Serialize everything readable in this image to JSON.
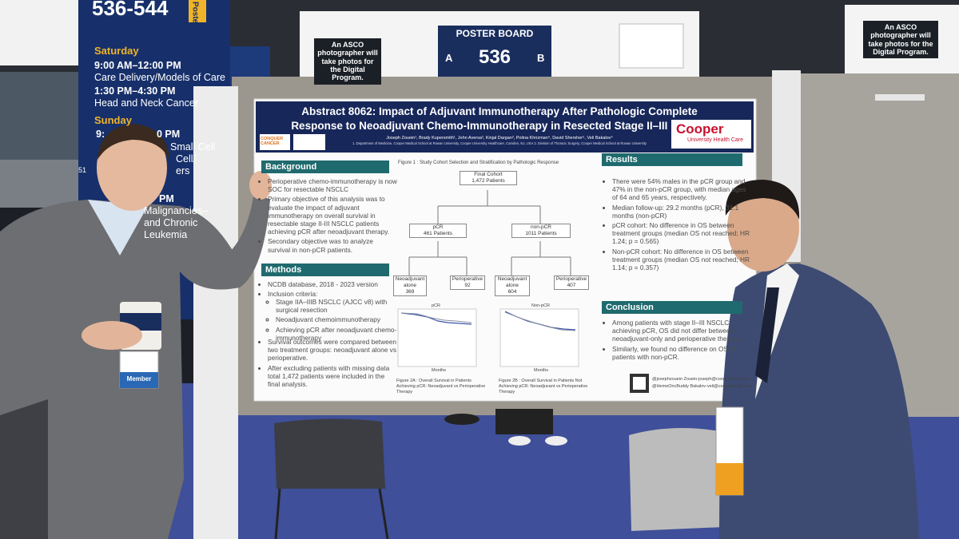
{
  "left_banner": {
    "board_range": "536-544",
    "side_label": "Poste",
    "saturday": "Saturday",
    "sat_time_1": "9:00 AM–12:00 PM",
    "sat_topic_1": "Care Delivery/Models of Care",
    "sat_time_2": "1:30 PM–4:30 PM",
    "sat_topic_2": "Head and Neck Cancer",
    "sunday": "Sunday",
    "sun_fragments": [
      "9:",
      "0 PM",
      "Small Cell",
      "Cell/",
      "ers",
      "PM",
      "Malignancies–",
      "and Chronic",
      "Leukemia"
    ],
    "edge_number": "51"
  },
  "board_sign": {
    "title": "POSTER BOARD",
    "side_a": "A",
    "number": "536",
    "side_b": "B"
  },
  "photographer_sign": "An ASCO photographer will take photos for the Digital Program.",
  "poster": {
    "title": "Abstract 8062: Impact of Adjuvant Immunotherapy After Pathologic Complete Response to Neoadjuvant Chemo-Immunotherapy in Resected Stage II–III NSCLC",
    "authors": "Joseph Zouein¹, Brady Kupersmith¹, John Aversa², Kinjal Dargan³, Polina Khrizman⁴, David Shersher⁵, Veli Bakalov⁴",
    "affiliations": "1. Department of Medicine, Cooper Medical School at Rowan University, Cooper University Healthcare, Camden, NJ, USA 2. Division of Thoracic Surgery, Cooper Medical School at Rowan University",
    "left_logo": "CONQUER CANCER",
    "right_logo": "Cooper",
    "right_logo_sub": "University Health Care",
    "background": {
      "heading": "Background",
      "items": [
        "Perioperative chemo-immunotherapy is now SOC for resectable NSCLC",
        "Primary objective of this analysis was to evaluate the impact of adjuvant immunotherapy on overall survival in resectable stage II-III NSCLC patients achieving pCR after neoadjuvant therapy.",
        "Secondary objective was to analyze survival in non-pCR patients."
      ]
    },
    "methods": {
      "heading": "Methods",
      "items_before": [
        "NCDB database, 2018 - 2023 version",
        "Inclusion criteria:"
      ],
      "inclusion": [
        "Stage IIA–IIIB NSCLC (AJCC v8) with surgical resection",
        "Neoadjuvant chemoimmunotherapy",
        "Achieving pCR after neoadjuvant chemo-immunotherapy"
      ],
      "items_after": [
        "Survival outcomes were compared between two treatment groups: neoadjuvant alone vs perioperative.",
        "After excluding patients with missing data total 1,472 patients were included in the final analysis."
      ]
    },
    "figure": {
      "caption": "Figure 1 : Study Cohort Selection and Stratification by Pathologic Response",
      "final": "Final Cohort",
      "final_n": "1,472 Patients",
      "pcr": "pCR",
      "pcr_n": "461 Patients",
      "nonpcr": "non-pCR",
      "nonpcr_n": "1011 Patients",
      "leaf_1": "Neoadjuvant alone",
      "leaf_1_n": "369",
      "leaf_2": "Perioperative",
      "leaf_2_n": "92",
      "leaf_3": "Neoadjuvant alone",
      "leaf_3_n": "604",
      "leaf_4": "Perioperative",
      "leaf_4_n": "407",
      "km_a_title": "pCR",
      "km_b_title": "Non-pCR",
      "km_x_label": "Months",
      "caption_a": "Figure 2A : Overall Survival in Patients Achieving pCR: Neoadjuvant vs Perioperative Therapy",
      "caption_b": "Figure 2B : Overall Survival in Patients Not Achieving pCR: Neoadjuvant vs Perioperative Therapy"
    },
    "results": {
      "heading": "Results",
      "items": [
        "There were 54% males in the pCR group and 47% in the non-pCR group, with median ages of 64 and 65 years, respectively.",
        "Median follow-up: 29.2 months (pCR), 31.1 months (non-pCR)",
        "pCR cohort: No difference in OS between treatment groups (median OS not reached; HR 1.24; p = 0.565)",
        "Non-pCR cohort: No difference in OS between treatment groups (median OS not reached; HR 1.14; p = 0.357)"
      ]
    },
    "conclusion": {
      "heading": "Conclusion",
      "items": [
        "Among patients with stage II–III NSCLC achieving pCR, OS did not differ between neoadjuvant-only and perioperative therapy.",
        "Similarly, we found no difference on OS in patients with non-pCR."
      ]
    },
    "contacts": [
      "@josephzouein  Zouein-joseph@cooperhealth.edu",
      "@HemeOncBuddy  Bakalov-veli@cooperhealth.edu"
    ]
  },
  "badge": "Member"
}
